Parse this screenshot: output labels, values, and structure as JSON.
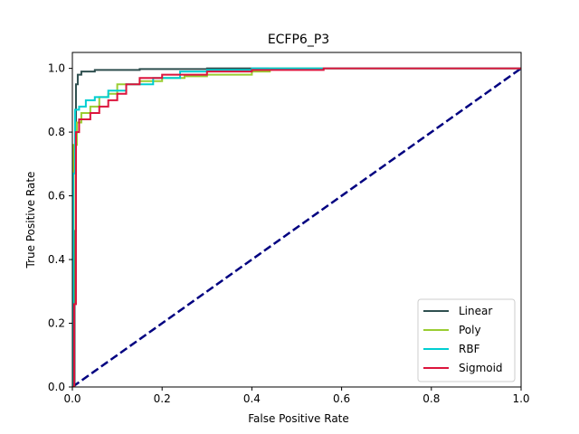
{
  "chart_data": {
    "type": "line",
    "title": "ECFP6_P3",
    "xlabel": "False Positive Rate",
    "ylabel": "True Positive Rate",
    "xlim": [
      0.0,
      1.0
    ],
    "ylim": [
      0.0,
      1.05
    ],
    "xticks": [
      "0.0",
      "0.2",
      "0.4",
      "0.6",
      "0.8",
      "1.0"
    ],
    "yticks": [
      "0.0",
      "0.2",
      "0.4",
      "0.6",
      "0.8",
      "1.0"
    ],
    "grid": false,
    "legend_position": "lower-right",
    "diagonal": {
      "x": [
        0,
        1
      ],
      "y": [
        0,
        1
      ],
      "color": "#000080",
      "style": "dashed"
    },
    "series": [
      {
        "name": "Linear",
        "color": "#2f4f4f",
        "x": [
          0.0,
          0.005,
          0.005,
          0.008,
          0.008,
          0.012,
          0.012,
          0.02,
          0.02,
          0.05,
          0.05,
          0.15,
          0.15,
          0.3,
          0.3,
          1.0
        ],
        "y": [
          0.0,
          0.0,
          0.49,
          0.49,
          0.95,
          0.95,
          0.98,
          0.98,
          0.99,
          0.99,
          0.995,
          0.995,
          0.998,
          0.998,
          1.0,
          1.0
        ]
      },
      {
        "name": "Poly",
        "color": "#9acd32",
        "x": [
          0.0,
          0.003,
          0.003,
          0.01,
          0.01,
          0.02,
          0.02,
          0.04,
          0.04,
          0.06,
          0.06,
          0.08,
          0.08,
          0.1,
          0.1,
          0.15,
          0.15,
          0.2,
          0.2,
          0.25,
          0.25,
          0.3,
          0.3,
          0.4,
          0.4,
          0.44,
          0.44,
          1.0
        ],
        "y": [
          0.0,
          0.0,
          0.76,
          0.76,
          0.83,
          0.83,
          0.86,
          0.86,
          0.88,
          0.88,
          0.91,
          0.91,
          0.92,
          0.92,
          0.95,
          0.95,
          0.96,
          0.96,
          0.97,
          0.97,
          0.975,
          0.975,
          0.98,
          0.98,
          0.99,
          0.99,
          1.0,
          1.0
        ]
      },
      {
        "name": "RBF",
        "color": "#00ced1",
        "x": [
          0.0,
          0.002,
          0.002,
          0.006,
          0.006,
          0.015,
          0.015,
          0.03,
          0.03,
          0.05,
          0.05,
          0.08,
          0.08,
          0.12,
          0.12,
          0.18,
          0.18,
          0.24,
          0.24,
          0.3,
          0.3,
          0.4,
          0.4,
          1.0
        ],
        "y": [
          0.0,
          0.0,
          0.67,
          0.67,
          0.87,
          0.87,
          0.88,
          0.88,
          0.9,
          0.9,
          0.91,
          0.91,
          0.93,
          0.93,
          0.95,
          0.95,
          0.97,
          0.97,
          0.99,
          0.99,
          0.995,
          0.995,
          1.0,
          1.0
        ]
      },
      {
        "name": "Sigmoid",
        "color": "#dc143c",
        "x": [
          0.0,
          0.004,
          0.004,
          0.008,
          0.008,
          0.015,
          0.015,
          0.04,
          0.04,
          0.06,
          0.06,
          0.08,
          0.08,
          0.1,
          0.1,
          0.12,
          0.12,
          0.15,
          0.15,
          0.2,
          0.2,
          0.3,
          0.3,
          0.4,
          0.4,
          0.56,
          0.56,
          1.0
        ],
        "y": [
          0.0,
          0.0,
          0.26,
          0.26,
          0.8,
          0.8,
          0.84,
          0.84,
          0.86,
          0.86,
          0.88,
          0.88,
          0.9,
          0.9,
          0.92,
          0.92,
          0.95,
          0.95,
          0.97,
          0.97,
          0.98,
          0.98,
          0.99,
          0.99,
          0.995,
          0.995,
          1.0,
          1.0
        ]
      }
    ]
  }
}
